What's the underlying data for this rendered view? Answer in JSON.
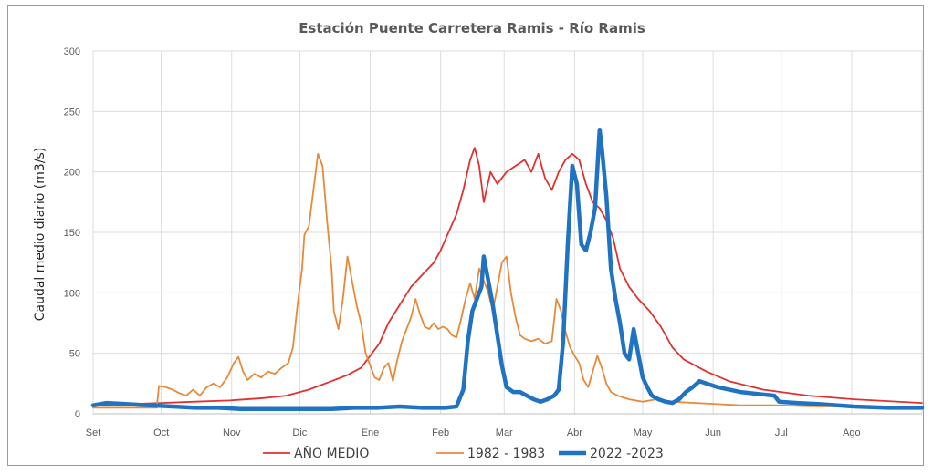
{
  "chart_data": {
    "type": "line",
    "title": "Estación Puente Carretera Ramis - Río Ramis",
    "xlabel": "",
    "ylabel": "Caudal medio diario (m3/s)",
    "ylim": [
      0,
      300
    ],
    "yticks": [
      0,
      50,
      100,
      150,
      200,
      250,
      300
    ],
    "xlim": [
      0,
      365
    ],
    "month_ticks": [
      {
        "label": "Set",
        "day": 0
      },
      {
        "label": "Oct",
        "day": 30
      },
      {
        "label": "Nov",
        "day": 61
      },
      {
        "label": "Dic",
        "day": 91
      },
      {
        "label": "Ene",
        "day": 122
      },
      {
        "label": "Feb",
        "day": 153
      },
      {
        "label": "Mar",
        "day": 181
      },
      {
        "label": "Abr",
        "day": 212
      },
      {
        "label": "May",
        "day": 242
      },
      {
        "label": "Jun",
        "day": 273
      },
      {
        "label": "Jul",
        "day": 303
      },
      {
        "label": "Ago",
        "day": 334
      }
    ],
    "grid": true,
    "legend_position": "bottom",
    "series": [
      {
        "name": "AÑO MEDIO",
        "color": "#e0312f",
        "points": [
          [
            0,
            7
          ],
          [
            15,
            8
          ],
          [
            30,
            9
          ],
          [
            45,
            10
          ],
          [
            60,
            11
          ],
          [
            75,
            13
          ],
          [
            85,
            15
          ],
          [
            95,
            20
          ],
          [
            105,
            27
          ],
          [
            112,
            32
          ],
          [
            118,
            38
          ],
          [
            122,
            48
          ],
          [
            126,
            58
          ],
          [
            130,
            75
          ],
          [
            135,
            90
          ],
          [
            140,
            105
          ],
          [
            145,
            115
          ],
          [
            150,
            125
          ],
          [
            153,
            135
          ],
          [
            156,
            148
          ],
          [
            160,
            165
          ],
          [
            163,
            185
          ],
          [
            166,
            210
          ],
          [
            168,
            220
          ],
          [
            170,
            205
          ],
          [
            172,
            175
          ],
          [
            175,
            200
          ],
          [
            178,
            190
          ],
          [
            182,
            200
          ],
          [
            186,
            205
          ],
          [
            190,
            210
          ],
          [
            193,
            200
          ],
          [
            196,
            215
          ],
          [
            199,
            195
          ],
          [
            202,
            185
          ],
          [
            205,
            200
          ],
          [
            208,
            210
          ],
          [
            211,
            215
          ],
          [
            214,
            210
          ],
          [
            217,
            190
          ],
          [
            220,
            175
          ],
          [
            223,
            170
          ],
          [
            226,
            160
          ],
          [
            229,
            145
          ],
          [
            232,
            120
          ],
          [
            236,
            105
          ],
          [
            240,
            95
          ],
          [
            245,
            85
          ],
          [
            250,
            72
          ],
          [
            255,
            55
          ],
          [
            260,
            45
          ],
          [
            270,
            35
          ],
          [
            280,
            27
          ],
          [
            295,
            20
          ],
          [
            315,
            15
          ],
          [
            335,
            12
          ],
          [
            365,
            9
          ]
        ]
      },
      {
        "name": "1982 - 1983",
        "color": "#e8893a",
        "points": [
          [
            0,
            5
          ],
          [
            15,
            5
          ],
          [
            28,
            5
          ],
          [
            29,
            23
          ],
          [
            32,
            22
          ],
          [
            35,
            20
          ],
          [
            38,
            17
          ],
          [
            41,
            15
          ],
          [
            44,
            20
          ],
          [
            47,
            15
          ],
          [
            50,
            22
          ],
          [
            53,
            25
          ],
          [
            56,
            22
          ],
          [
            59,
            30
          ],
          [
            62,
            42
          ],
          [
            64,
            47
          ],
          [
            66,
            35
          ],
          [
            68,
            28
          ],
          [
            71,
            33
          ],
          [
            74,
            30
          ],
          [
            77,
            35
          ],
          [
            80,
            33
          ],
          [
            83,
            38
          ],
          [
            86,
            42
          ],
          [
            88,
            55
          ],
          [
            90,
            90
          ],
          [
            92,
            120
          ],
          [
            93,
            148
          ],
          [
            95,
            155
          ],
          [
            97,
            185
          ],
          [
            99,
            215
          ],
          [
            101,
            205
          ],
          [
            103,
            160
          ],
          [
            105,
            120
          ],
          [
            106,
            85
          ],
          [
            108,
            70
          ],
          [
            110,
            95
          ],
          [
            112,
            130
          ],
          [
            114,
            110
          ],
          [
            116,
            90
          ],
          [
            118,
            75
          ],
          [
            120,
            50
          ],
          [
            122,
            40
          ],
          [
            124,
            30
          ],
          [
            126,
            28
          ],
          [
            128,
            38
          ],
          [
            130,
            42
          ],
          [
            132,
            27
          ],
          [
            134,
            45
          ],
          [
            136,
            60
          ],
          [
            138,
            70
          ],
          [
            140,
            80
          ],
          [
            142,
            95
          ],
          [
            144,
            82
          ],
          [
            146,
            72
          ],
          [
            148,
            70
          ],
          [
            150,
            75
          ],
          [
            152,
            70
          ],
          [
            154,
            72
          ],
          [
            156,
            70
          ],
          [
            158,
            65
          ],
          [
            160,
            63
          ],
          [
            162,
            78
          ],
          [
            164,
            95
          ],
          [
            166,
            108
          ],
          [
            168,
            95
          ],
          [
            170,
            120
          ],
          [
            172,
            110
          ],
          [
            174,
            100
          ],
          [
            176,
            85
          ],
          [
            178,
            105
          ],
          [
            180,
            125
          ],
          [
            182,
            130
          ],
          [
            184,
            100
          ],
          [
            186,
            80
          ],
          [
            188,
            65
          ],
          [
            190,
            62
          ],
          [
            193,
            60
          ],
          [
            196,
            62
          ],
          [
            199,
            58
          ],
          [
            202,
            60
          ],
          [
            204,
            95
          ],
          [
            206,
            85
          ],
          [
            208,
            68
          ],
          [
            210,
            55
          ],
          [
            212,
            48
          ],
          [
            214,
            42
          ],
          [
            216,
            28
          ],
          [
            218,
            22
          ],
          [
            220,
            35
          ],
          [
            222,
            48
          ],
          [
            224,
            38
          ],
          [
            226,
            25
          ],
          [
            228,
            18
          ],
          [
            231,
            15
          ],
          [
            236,
            12
          ],
          [
            242,
            10
          ],
          [
            248,
            12
          ],
          [
            255,
            10
          ],
          [
            265,
            9
          ],
          [
            275,
            8
          ],
          [
            285,
            7
          ],
          [
            300,
            7
          ],
          [
            320,
            6
          ],
          [
            340,
            6
          ],
          [
            365,
            6
          ]
        ]
      },
      {
        "name": "2022 -2023",
        "color": "#1f73c2",
        "points": [
          [
            0,
            7
          ],
          [
            3,
            8
          ],
          [
            6,
            9
          ],
          [
            15,
            8
          ],
          [
            25,
            7
          ],
          [
            35,
            6
          ],
          [
            45,
            5
          ],
          [
            55,
            5
          ],
          [
            65,
            4
          ],
          [
            75,
            4
          ],
          [
            85,
            4
          ],
          [
            95,
            4
          ],
          [
            105,
            4
          ],
          [
            115,
            5
          ],
          [
            125,
            5
          ],
          [
            135,
            6
          ],
          [
            145,
            5
          ],
          [
            155,
            5
          ],
          [
            160,
            6
          ],
          [
            163,
            20
          ],
          [
            165,
            60
          ],
          [
            167,
            85
          ],
          [
            169,
            95
          ],
          [
            171,
            105
          ],
          [
            172,
            130
          ],
          [
            174,
            110
          ],
          [
            176,
            90
          ],
          [
            178,
            65
          ],
          [
            180,
            40
          ],
          [
            182,
            22
          ],
          [
            185,
            18
          ],
          [
            188,
            18
          ],
          [
            191,
            15
          ],
          [
            194,
            12
          ],
          [
            197,
            10
          ],
          [
            200,
            12
          ],
          [
            203,
            15
          ],
          [
            205,
            20
          ],
          [
            207,
            60
          ],
          [
            209,
            140
          ],
          [
            211,
            205
          ],
          [
            213,
            190
          ],
          [
            215,
            140
          ],
          [
            217,
            135
          ],
          [
            219,
            150
          ],
          [
            221,
            170
          ],
          [
            223,
            235
          ],
          [
            224,
            220
          ],
          [
            226,
            180
          ],
          [
            228,
            120
          ],
          [
            230,
            95
          ],
          [
            232,
            75
          ],
          [
            234,
            50
          ],
          [
            236,
            45
          ],
          [
            238,
            70
          ],
          [
            240,
            50
          ],
          [
            242,
            30
          ],
          [
            244,
            22
          ],
          [
            246,
            15
          ],
          [
            249,
            12
          ],
          [
            252,
            10
          ],
          [
            255,
            9
          ],
          [
            258,
            12
          ],
          [
            261,
            18
          ],
          [
            264,
            22
          ],
          [
            267,
            27
          ],
          [
            270,
            25
          ],
          [
            275,
            22
          ],
          [
            285,
            18
          ],
          [
            295,
            16
          ],
          [
            300,
            15
          ],
          [
            302,
            10
          ],
          [
            310,
            9
          ],
          [
            320,
            8
          ],
          [
            335,
            6
          ],
          [
            350,
            5
          ],
          [
            365,
            5
          ]
        ]
      }
    ]
  }
}
